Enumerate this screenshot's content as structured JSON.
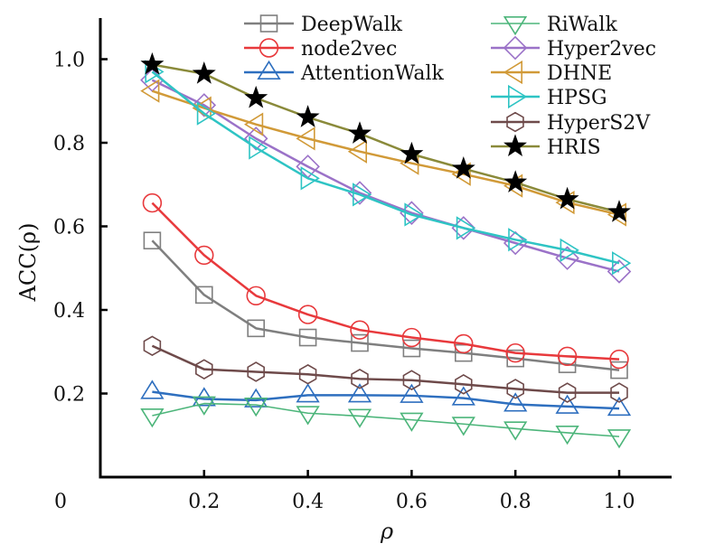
{
  "chart_data": {
    "type": "line",
    "title": "",
    "xlabel": "ρ",
    "ylabel": "ACC(ρ)",
    "xlim": [
      0,
      1.1
    ],
    "ylim": [
      0,
      1.1
    ],
    "grid": false,
    "legend_position": "top-right",
    "origin_label": "0",
    "x_ticks": [
      0.2,
      0.4,
      0.6,
      0.8,
      1.0
    ],
    "x_tick_labels": [
      "0.2",
      "0.4",
      "0.6",
      "0.8",
      "1.0"
    ],
    "y_ticks": [
      0.2,
      0.4,
      0.6,
      0.8,
      1.0
    ],
    "y_tick_labels": [
      "0.2",
      "0.4",
      "0.6",
      "0.8",
      "1.0"
    ],
    "x": [
      0.1,
      0.2,
      0.3,
      0.4,
      0.5,
      0.6,
      0.7,
      0.8,
      0.9,
      1.0
    ],
    "series": [
      {
        "name": "DeepWalk",
        "color": "#7f7f7f",
        "marker": "square",
        "values": [
          0.566,
          0.436,
          0.356,
          0.334,
          0.321,
          0.308,
          0.297,
          0.284,
          0.27,
          0.256
        ]
      },
      {
        "name": "node2vec",
        "color": "#e8393c",
        "marker": "circle",
        "values": [
          0.656,
          0.531,
          0.434,
          0.389,
          0.352,
          0.334,
          0.319,
          0.297,
          0.289,
          0.282
        ]
      },
      {
        "name": "AttentionWalk",
        "color": "#2e6fbf",
        "marker": "triangle-up",
        "values": [
          0.204,
          0.187,
          0.184,
          0.196,
          0.196,
          0.195,
          0.189,
          0.174,
          0.169,
          0.164
        ]
      },
      {
        "name": "RiWalk",
        "color": "#4cb57a",
        "marker": "triangle-down",
        "values": [
          0.147,
          0.176,
          0.173,
          0.153,
          0.146,
          0.137,
          0.127,
          0.116,
          0.106,
          0.097
        ]
      },
      {
        "name": "Hyper2vec",
        "color": "#9b72c8",
        "marker": "diamond",
        "values": [
          0.95,
          0.89,
          0.81,
          0.743,
          0.68,
          0.632,
          0.596,
          0.56,
          0.524,
          0.492
        ]
      },
      {
        "name": "DHNE",
        "color": "#d19a38",
        "marker": "triangle-left",
        "values": [
          0.924,
          0.883,
          0.844,
          0.81,
          0.779,
          0.751,
          0.725,
          0.697,
          0.657,
          0.628
        ]
      },
      {
        "name": "HPSG",
        "color": "#2ec4c4",
        "marker": "triangle-right",
        "values": [
          0.97,
          0.87,
          0.788,
          0.715,
          0.676,
          0.628,
          0.596,
          0.568,
          0.543,
          0.512
        ]
      },
      {
        "name": "HyperS2V",
        "color": "#6e4a4a",
        "marker": "hexagon",
        "values": [
          0.314,
          0.258,
          0.252,
          0.246,
          0.235,
          0.232,
          0.222,
          0.211,
          0.202,
          0.202
        ]
      },
      {
        "name": "HRIS",
        "color": "#8a8a3a",
        "marker": "star",
        "values": [
          0.987,
          0.965,
          0.907,
          0.861,
          0.822,
          0.773,
          0.738,
          0.705,
          0.665,
          0.634
        ]
      }
    ]
  }
}
